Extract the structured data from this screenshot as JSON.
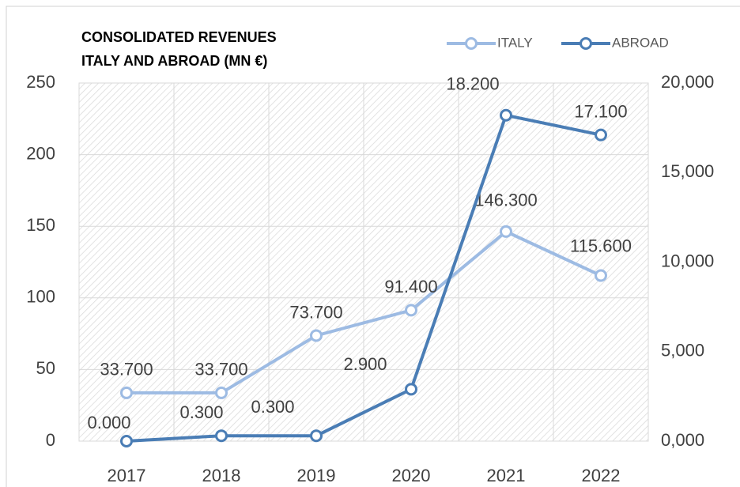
{
  "chart_data": {
    "type": "line",
    "title": [
      "CONSOLIDATED REVENUES",
      "ITALY AND ABROAD (MN €)"
    ],
    "categories": [
      "2017",
      "2018",
      "2019",
      "2020",
      "2021",
      "2022"
    ],
    "series": [
      {
        "name": "ITALY",
        "color": "#9dbbe3",
        "values": [
          33.7,
          33.7,
          73.7,
          91.4,
          146.3,
          115.6
        ],
        "value_labels": [
          "33.700",
          "33.700",
          "73.700",
          "91.400",
          "146.300",
          "115.600"
        ]
      },
      {
        "name": "ABROAD",
        "color": "#4a7db5",
        "axis": "y2",
        "values": [
          0,
          300,
          300,
          2900,
          18200,
          17100
        ],
        "value_labels": [
          "0.000",
          "0.300",
          "0.300",
          "2.900",
          "18.200",
          "17.100"
        ]
      }
    ],
    "ylim": [
      0,
      250
    ],
    "yticks": [
      0,
      50,
      100,
      150,
      200,
      250
    ],
    "y2lim": [
      0,
      20000
    ],
    "y2ticks": [
      {
        "value": 0,
        "label": "0,000"
      },
      {
        "value": 5000,
        "label": "5,000"
      },
      {
        "value": 10000,
        "label": "10,000"
      },
      {
        "value": 15000,
        "label": "15,000"
      },
      {
        "value": 20000,
        "label": "20,000"
      }
    ],
    "grid": true,
    "legend": "top-right"
  }
}
